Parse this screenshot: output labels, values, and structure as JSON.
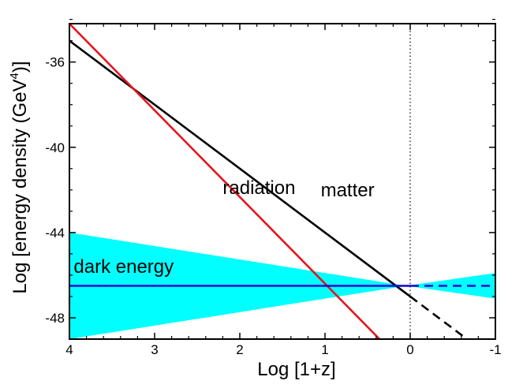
{
  "chart_data": {
    "type": "line",
    "xlabel": "Log [1+z]",
    "ylabel_prefix": "Log [energy density (GeV",
    "ylabel_sup": "4",
    "ylabel_suffix": ")]",
    "xlim": [
      4,
      -1
    ],
    "ylim": [
      -49,
      -34.2
    ],
    "x_ticks": [
      4,
      3,
      2,
      1,
      0,
      -1
    ],
    "x_tick_labels": [
      "4",
      "3",
      "2",
      "1",
      "0",
      "-1"
    ],
    "y_ticks": [
      -36,
      -40,
      -44,
      -48
    ],
    "y_tick_labels": [
      "-36",
      "-40",
      "-44",
      "-48"
    ],
    "vertical_marker_x": 0,
    "series": [
      {
        "name": "matter",
        "color": "#000000",
        "x": [
          4,
          0
        ],
        "y": [
          -35.0,
          -47.0
        ],
        "extension": {
          "x": [
            0,
            -0.65
          ],
          "y": [
            -47.0,
            -48.95
          ],
          "style": "dashed"
        }
      },
      {
        "name": "radiation",
        "color": "#e8141e",
        "x": [
          4,
          0.36
        ],
        "y": [
          -34.2,
          -49.0
        ]
      },
      {
        "name": "dark energy",
        "color": "#1414d2",
        "x": [
          4,
          0
        ],
        "y": [
          -46.5,
          -46.5
        ],
        "extension": {
          "x": [
            0,
            -1
          ],
          "y": [
            -46.5,
            -46.5
          ],
          "style": "dashed"
        }
      }
    ],
    "band": {
      "name": "dark energy range",
      "color": "#00ffff",
      "x": [
        4,
        0.05,
        -1
      ],
      "upper": [
        -44.0,
        -46.5,
        -45.9
      ],
      "lower": [
        -49.0,
        -46.5,
        -47.1
      ]
    },
    "annotations": [
      {
        "text": "radiation",
        "x": 2.2,
        "y": -42.2
      },
      {
        "text": "matter",
        "x": 1.05,
        "y": -42.3
      },
      {
        "text": "dark energy",
        "x": 3.95,
        "y": -45.9
      }
    ]
  }
}
